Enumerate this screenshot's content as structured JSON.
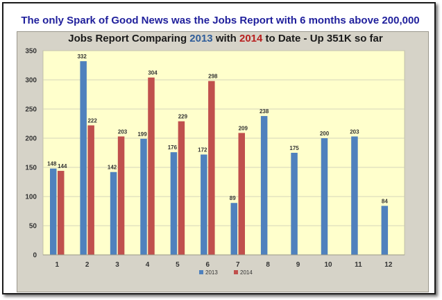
{
  "banner": "The only Spark of Good News was the Jobs Report with 6 months above 200,000",
  "chart_data": {
    "type": "bar",
    "title_parts": {
      "prefix": "Jobs Report Comparing ",
      "year_a": "2013",
      "middle": " with ",
      "year_b": "2014",
      "suffix": " to Date - Up 351K so far"
    },
    "categories": [
      "1",
      "2",
      "3",
      "4",
      "5",
      "6",
      "7",
      "8",
      "9",
      "10",
      "11",
      "12"
    ],
    "series": [
      {
        "name": "2013",
        "color": "#4f81bd",
        "values": [
          148,
          332,
          142,
          199,
          176,
          172,
          89,
          238,
          175,
          200,
          203,
          84
        ]
      },
      {
        "name": "2014",
        "color": "#c0504d",
        "values": [
          144,
          222,
          203,
          304,
          229,
          298,
          209,
          null,
          null,
          null,
          null,
          null
        ]
      }
    ],
    "yticks": [
      "0",
      "50",
      "100",
      "150",
      "200",
      "250",
      "300",
      "350"
    ],
    "ylim": [
      0,
      350
    ],
    "grid": true,
    "legend_position": "bottom",
    "plot_bg": "#ffffcc"
  }
}
